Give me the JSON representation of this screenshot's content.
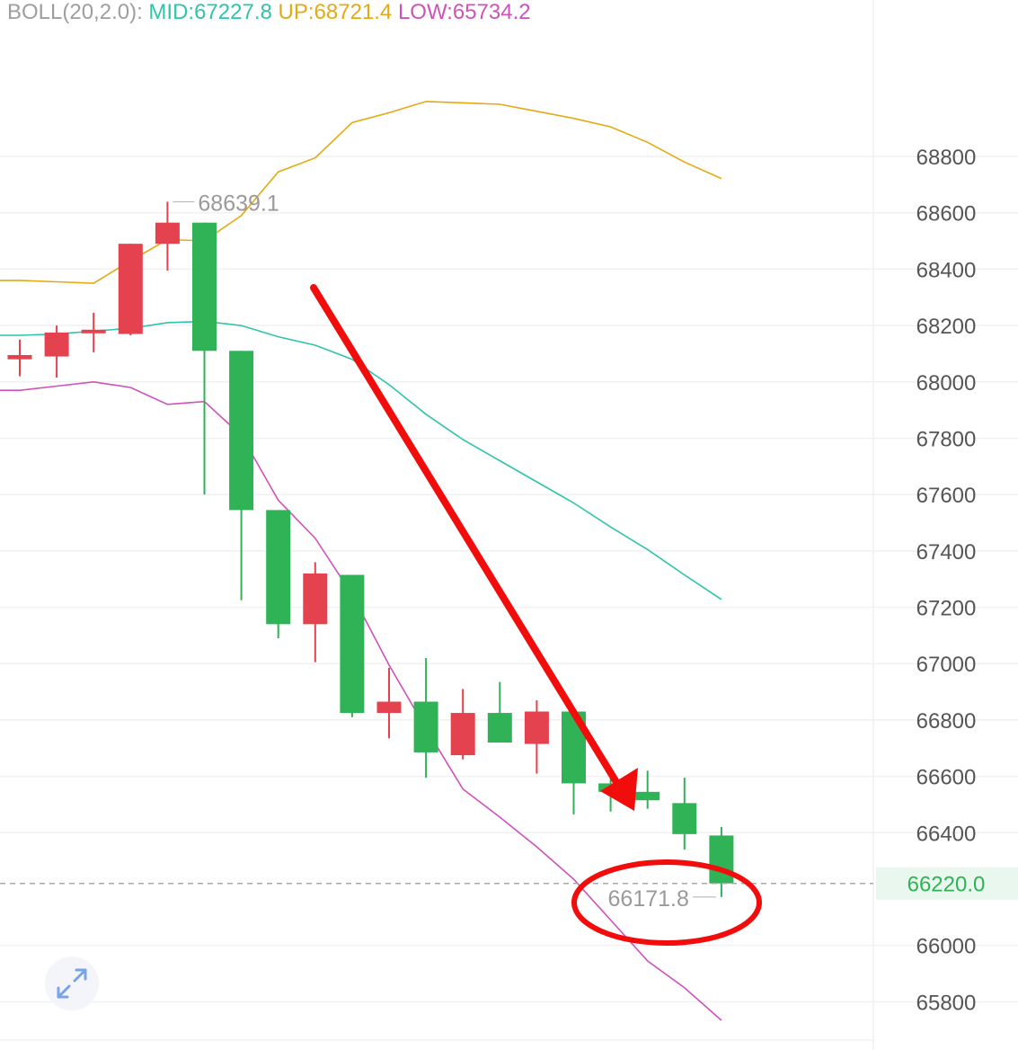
{
  "legend": {
    "label": "BOLL(20,2.0):",
    "mid": "MID:67227.8",
    "up": "UP:68721.4",
    "low": "LOW:65734.2",
    "colors": {
      "mid": "#2fc4ac",
      "up": "#e3aa12",
      "low": "#cf51bc"
    }
  },
  "controls": {
    "expand_icon": "expand-arrows-icon"
  },
  "chart_data": {
    "type": "candlestick",
    "y_axis_ticks": [
      68800,
      68600,
      68400,
      68200,
      68000,
      67800,
      67600,
      67400,
      67200,
      67000,
      66800,
      66600,
      66400,
      66000,
      65800
    ],
    "current_price": "66220.0",
    "high_marker": "68639.1",
    "low_marker": "66171.8",
    "colors": {
      "up": "#e3424e",
      "down": "#2fb356",
      "current_price": "#2fb356"
    },
    "candles": [
      {
        "open": 68080,
        "close": 68095,
        "high": 68150,
        "low": 68020
      },
      {
        "open": 68090,
        "close": 68175,
        "high": 68200,
        "low": 68015
      },
      {
        "open": 68180,
        "close": 68185,
        "high": 68245,
        "low": 68105
      },
      {
        "open": 68170,
        "close": 68490,
        "high": 68490,
        "low": 68165
      },
      {
        "open": 68490,
        "close": 68565,
        "high": 68639.1,
        "low": 68395
      },
      {
        "open": 68565,
        "close": 68110,
        "high": 68565,
        "low": 67600
      },
      {
        "open": 68110,
        "close": 67545,
        "high": 68110,
        "low": 67225
      },
      {
        "open": 67545,
        "close": 67140,
        "high": 67545,
        "low": 67090
      },
      {
        "open": 67140,
        "close": 67320,
        "high": 67360,
        "low": 67005
      },
      {
        "open": 67315,
        "close": 66825,
        "high": 67315,
        "low": 66810
      },
      {
        "open": 66825,
        "close": 66865,
        "high": 66985,
        "low": 66735
      },
      {
        "open": 66865,
        "close": 66685,
        "high": 67020,
        "low": 66595
      },
      {
        "open": 66675,
        "close": 66825,
        "high": 66910,
        "low": 66660
      },
      {
        "open": 66825,
        "close": 66720,
        "high": 66935,
        "low": 66720
      },
      {
        "open": 66715,
        "close": 66830,
        "high": 66870,
        "low": 66610
      },
      {
        "open": 66830,
        "close": 66575,
        "high": 66830,
        "low": 66465
      },
      {
        "open": 66575,
        "close": 66545,
        "high": 66600,
        "low": 66475
      },
      {
        "open": 66545,
        "close": 66515,
        "high": 66620,
        "low": 66485
      },
      {
        "open": 66505,
        "close": 66395,
        "high": 66595,
        "low": 66340
      },
      {
        "open": 66390,
        "close": 66220,
        "high": 66420,
        "low": 66171.8
      }
    ],
    "boll": {
      "up": [
        68360,
        68355,
        68350,
        68430,
        68505,
        68500,
        68590,
        68745,
        68795,
        68920,
        68955,
        68995,
        68990,
        68985,
        68960,
        68935,
        68905,
        68850,
        68780,
        68721.4
      ],
      "mid": [
        68165,
        68170,
        68180,
        68190,
        68210,
        68215,
        68200,
        68160,
        68130,
        68080,
        67990,
        67885,
        67795,
        67720,
        67645,
        67570,
        67485,
        67405,
        67315,
        67227.8
      ],
      "low": [
        67970,
        67985,
        68000,
        67980,
        67920,
        67930,
        67810,
        67580,
        67445,
        67245,
        66995,
        66770,
        66555,
        66455,
        66350,
        66235,
        66090,
        65945,
        65850,
        65734.2
      ]
    }
  }
}
